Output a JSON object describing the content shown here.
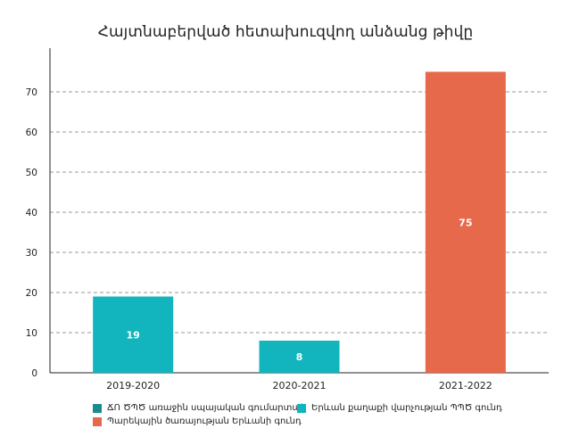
{
  "chart_data": {
    "type": "bar",
    "title": "Հայտնաբերված հետախուզվող անձանց թիվը",
    "categories": [
      "2019-2020",
      "2020-2021",
      "2021-2022"
    ],
    "values": [
      19,
      8,
      75
    ],
    "bar_colors": [
      "#12B5BD",
      "#12B5BD",
      "#E7694B"
    ],
    "ylim": [
      0,
      80
    ],
    "yticks": [
      0,
      10,
      20,
      30,
      40,
      50,
      60,
      70
    ],
    "grid": "horizontal dashed",
    "legend_position": "bottom",
    "legend": [
      {
        "label": "ՃՈ ԾՊԾ առաջին սպայական գումարտակ",
        "color": "#1A8C8F"
      },
      {
        "label": "Երևան քաղաքի վարչության ՊՊԾ գունդ",
        "color": "#12B5BD"
      },
      {
        "label": "Պարեկային ծառայության Երևանի գունդ",
        "color": "#E7694B"
      }
    ]
  }
}
